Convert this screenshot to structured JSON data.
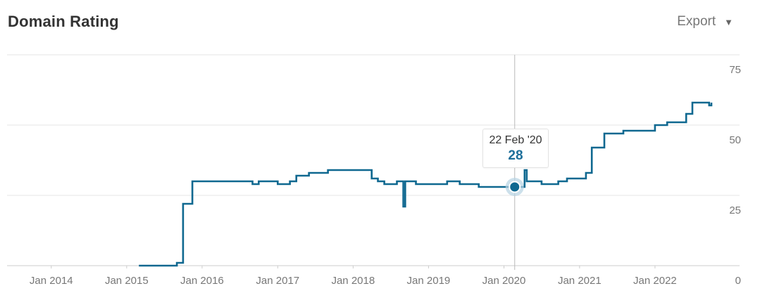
{
  "header": {
    "title": "Domain Rating",
    "export_label": "Export",
    "export_icon": "caret-down-icon"
  },
  "tooltip": {
    "date": "22 Feb '20",
    "value": "28"
  },
  "colors": {
    "line": "#0f6890",
    "grid": "#e4e4e4",
    "cursor": "#bbbbbb",
    "marker_halo": "#b7d3e3"
  },
  "chart_data": {
    "type": "line",
    "title": "Domain Rating",
    "x_tick_labels": [
      "Jan 2014",
      "Jan 2015",
      "Jan 2016",
      "Jan 2017",
      "Jan 2018",
      "Jan 2019",
      "Jan 2020",
      "Jan 2021",
      "Jan 2022"
    ],
    "y_ticks": [
      0,
      25,
      50,
      75
    ],
    "y_tick_labels": [
      "0",
      "25",
      "50",
      "75"
    ],
    "ylim": [
      0,
      75
    ],
    "xlim": [
      "2013-06-01",
      "2022-10-01"
    ],
    "y_axis_position": "right",
    "grid": true,
    "series": [
      {
        "x": [
          "2015-03-01",
          "2015-09-01",
          "2015-10-01",
          "2015-11-15",
          "2016-01-01",
          "2016-07-01",
          "2016-09-01",
          "2016-10-01",
          "2016-11-15",
          "2017-01-01",
          "2017-03-01",
          "2017-04-01",
          "2017-06-01",
          "2017-09-01",
          "2018-01-01",
          "2018-04-01",
          "2018-05-01",
          "2018-06-01",
          "2018-08-01",
          "2018-09-01",
          "2018-09-05",
          "2018-09-10",
          "2018-11-01",
          "2019-02-01",
          "2019-04-01",
          "2019-06-01",
          "2019-09-01",
          "2019-12-01",
          "2020-02-22",
          "2020-04-10",
          "2020-04-20",
          "2020-07-01",
          "2020-09-10",
          "2020-09-20",
          "2020-11-01",
          "2021-02-01",
          "2021-03-01",
          "2021-05-01",
          "2021-08-01",
          "2022-01-01",
          "2022-03-01",
          "2022-06-01",
          "2022-07-01",
          "2022-09-01",
          "2022-09-20",
          "2022-10-01"
        ],
        "y": [
          0,
          1,
          22,
          30,
          30,
          30,
          29,
          30,
          30,
          29,
          30,
          32,
          33,
          34,
          34,
          31,
          30,
          29,
          30,
          21,
          21,
          30,
          29,
          29,
          30,
          29,
          28,
          28,
          28,
          34,
          30,
          29,
          29,
          30,
          31,
          33,
          42,
          47,
          48,
          50,
          51,
          54,
          58,
          58,
          57,
          58
        ]
      }
    ]
  }
}
